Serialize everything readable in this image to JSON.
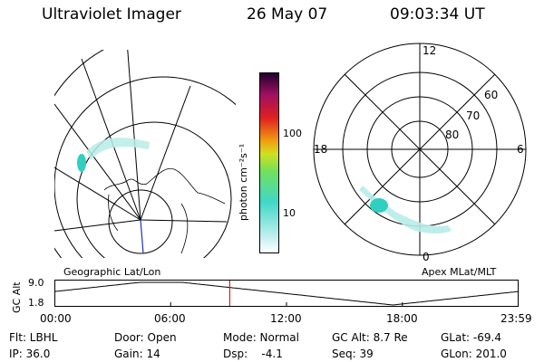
{
  "header": {
    "title": "Ultraviolet Imager",
    "date": "26 May 07",
    "time": "09:03:34 UT"
  },
  "colorbar": {
    "unit_label": "photon cm⁻²s⁻¹",
    "ticks": [
      "100",
      "10"
    ]
  },
  "geo_panel": {
    "label": "Geographic Lat/Lon"
  },
  "polar_panel": {
    "label": "Apex MLat/MLT",
    "mlt_labels": {
      "top": "12",
      "left": "18",
      "right": "6",
      "bottom": "0"
    },
    "lat_labels": [
      "60",
      "70",
      "80"
    ]
  },
  "altitude_plot": {
    "ylabel": "GC Alt",
    "ymax_label": "9.0",
    "ymin_label": "1.8",
    "xticks": [
      "00:00",
      "06:00",
      "12:00",
      "18:00",
      "23:59"
    ],
    "current_time_hours": 9.06
  },
  "info": {
    "filter": "Flt: LBHL",
    "ip": "IP: 36.0",
    "door": "Door: Open",
    "gain": "Gain: 14",
    "mode": "Mode: Normal",
    "dsp": "Dsp:    -4.1",
    "gc_alt": "GC Alt: 8.7 Re",
    "seq": "Seq: 39",
    "glat": "GLat: -69.4",
    "glon": "GLon: 201.0"
  },
  "colors": {
    "current_time_marker": "#e0201a",
    "meridian": "#2030c0",
    "aurora_bright": "#30d0c0",
    "aurora_faint": "#b8ece8"
  }
}
